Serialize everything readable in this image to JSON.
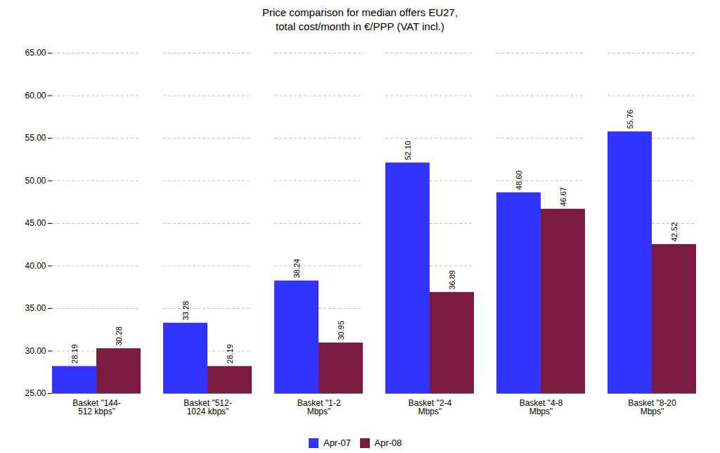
{
  "chart_data": {
    "type": "bar",
    "title": "Price comparison for median offers EU27,\ntotal cost/month in €/PPP (VAT incl.)",
    "categories": [
      "Basket \"144-\n512 kbps\"",
      "Basket \"512-\n1024 kbps\"",
      "Basket \"1-2\nMbps\"",
      "Basket \"2-4\nMbps\"",
      "Basket \"4-8\nMbps\"",
      "Basket \"8-20\nMbps\""
    ],
    "series": [
      {
        "name": "Apr-07",
        "color": "#3333FF",
        "values": [
          28.19,
          33.28,
          38.24,
          52.1,
          48.6,
          55.76
        ],
        "value_labels": [
          "28.19",
          "33.28",
          "38.24",
          "52.10",
          "48.60",
          "55.76"
        ]
      },
      {
        "name": "Apr-08",
        "color": "#7B1B40",
        "values": [
          30.28,
          28.19,
          30.95,
          36.89,
          46.67,
          42.52
        ],
        "value_labels": [
          "30.28",
          "28.19",
          "30.95",
          "36.89",
          "46.67",
          "42.52"
        ]
      }
    ],
    "ylim": [
      25.0,
      65.0
    ],
    "yticks": [
      {
        "value": 25,
        "label": "25.00"
      },
      {
        "value": 30,
        "label": "30.00"
      },
      {
        "value": 35,
        "label": "35.00"
      },
      {
        "value": 40,
        "label": "40.00"
      },
      {
        "value": 45,
        "label": "45.00"
      },
      {
        "value": 50,
        "label": "50.00"
      },
      {
        "value": 55,
        "label": "55.00"
      },
      {
        "value": 60,
        "label": "60.00"
      },
      {
        "value": 65,
        "label": "65.00"
      }
    ],
    "grid": true,
    "legend": "bottom",
    "data_labels": true
  }
}
